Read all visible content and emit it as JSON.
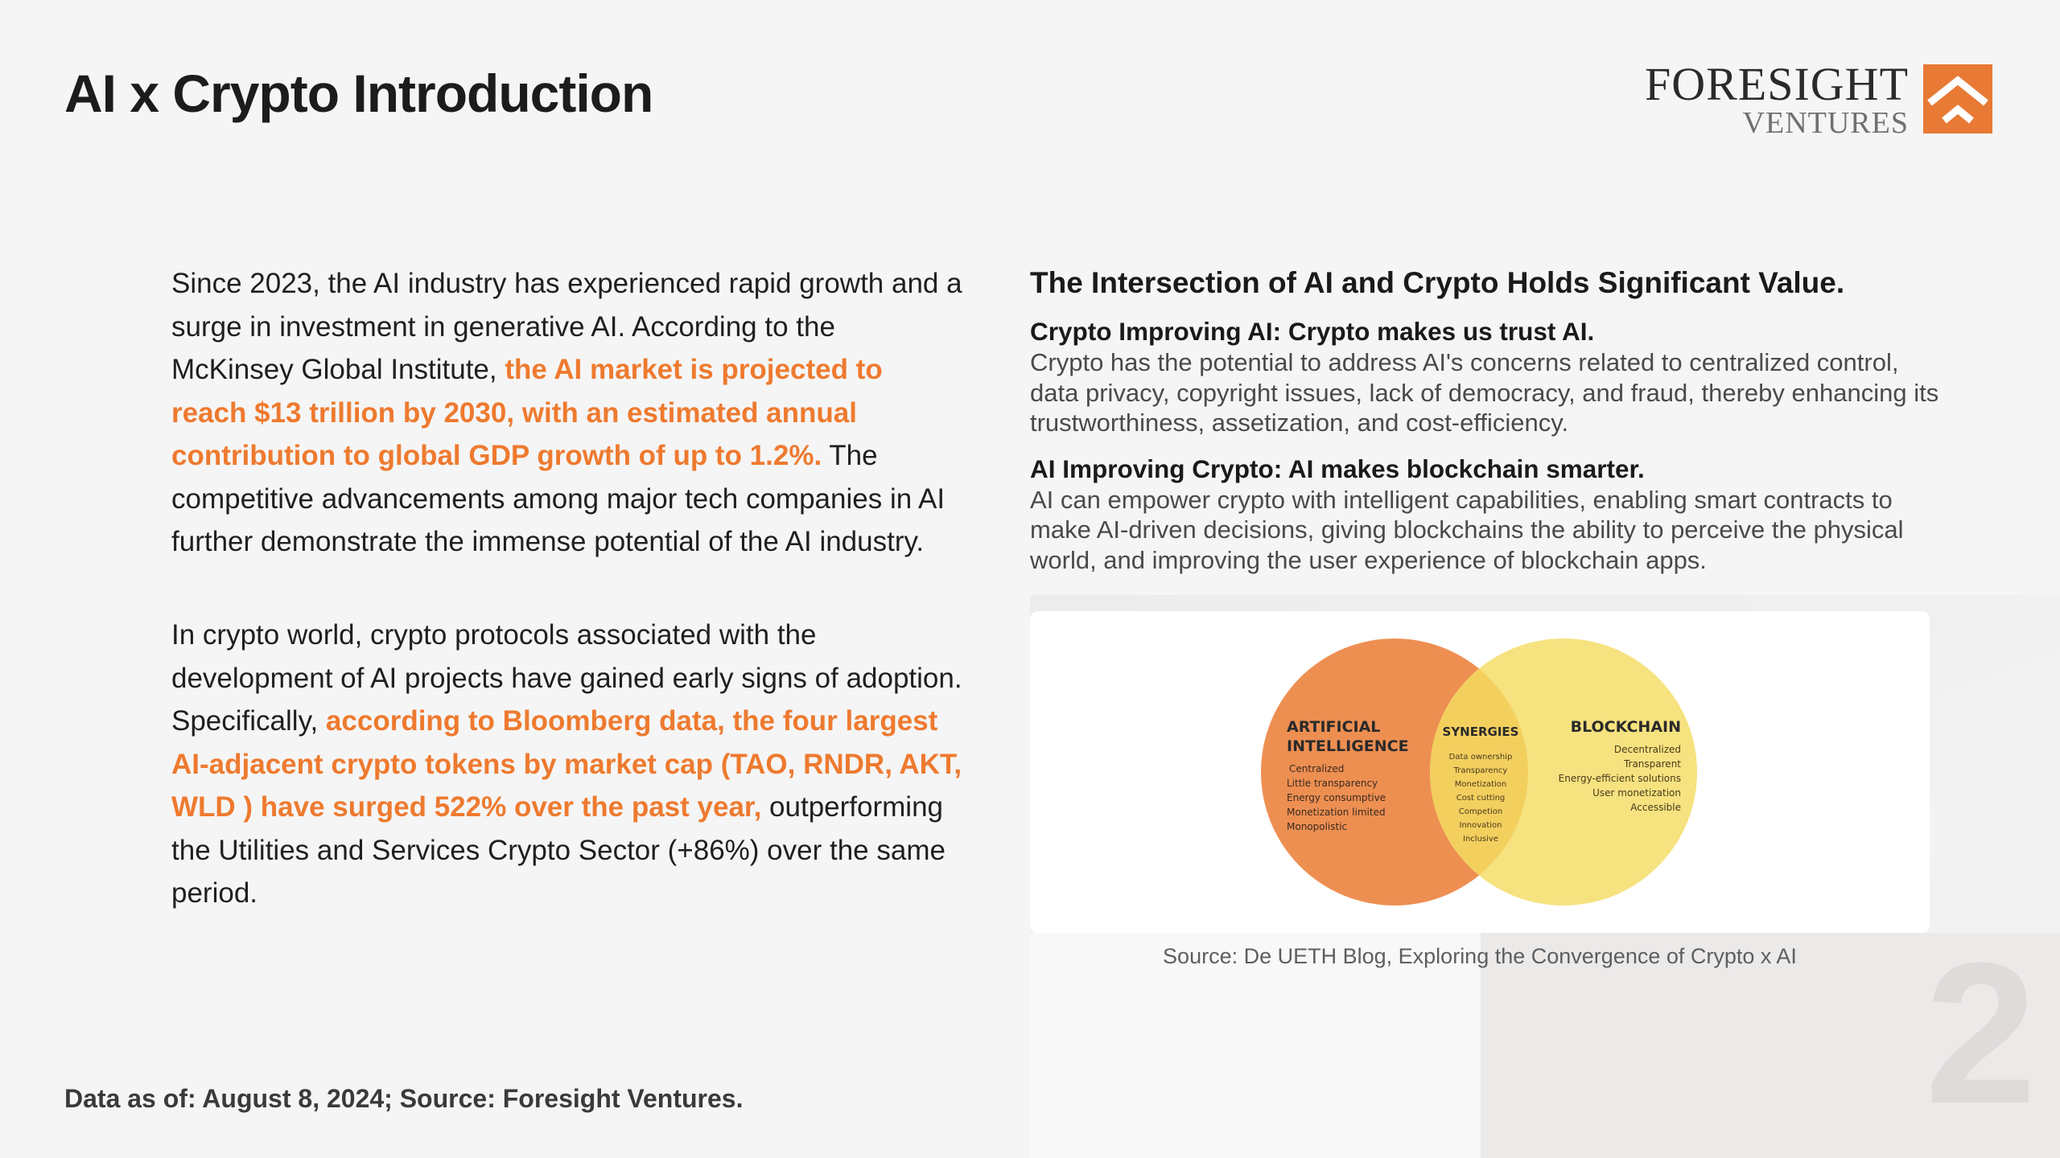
{
  "title": "AI x Crypto Introduction",
  "logo": {
    "name": "FORESIGHT",
    "subname": "VENTURES"
  },
  "left_column": {
    "paragraph_1": {
      "text_before": "Since 2023, the AI industry has experienced rapid growth and a surge in investment in generative AI. According to the McKinsey Global Institute, ",
      "highlight": "the AI market is projected to reach $13 trillion by 2030, with an estimated annual contribution to global GDP growth of up to 1.2%.",
      "text_after": " The competitive advancements among major tech companies in AI further demonstrate the immense potential of the AI industry."
    },
    "paragraph_2": {
      "text_before": "In crypto world, crypto protocols associated with the development of AI projects have gained early signs of adoption. Specifically, ",
      "highlight": "according to Bloomberg data, the four largest AI-adjacent crypto tokens by market cap (TAO, RNDR, AKT, WLD ) have surged 522% over the past year,",
      "text_after": " outperforming the Utilities and Services Crypto Sector (+86%) over the same period."
    }
  },
  "right_column": {
    "heading": "The Intersection of AI and Crypto Holds Significant Value.",
    "sections": [
      {
        "title": "Crypto Improving AI: Crypto makes us trust AI.",
        "text": "Crypto has the potential to address AI's concerns related to centralized control, data privacy, copyright issues, lack of democracy, and fraud, thereby enhancing its trustworthiness, assetization, and cost-efficiency."
      },
      {
        "title": "AI Improving Crypto: AI makes blockchain smarter.",
        "text": "AI can empower crypto with intelligent capabilities, enabling smart contracts to make AI-driven decisions, giving blockchains the ability to perceive the physical world, and improving the user experience of blockchain apps."
      }
    ]
  },
  "venn": {
    "left": {
      "title_line_1": "ARTIFICIAL",
      "title_line_2": "INTELLIGENCE",
      "items": [
        "Centralized",
        "Little transparency",
        "Energy consumptive",
        "Monetization limited",
        "Monopolistic"
      ],
      "color": "#ee8f52"
    },
    "middle": {
      "title": "SYNERGIES",
      "items": [
        "Data ownership",
        "Transparency",
        "Monetization",
        "Cost cutting",
        "Competion",
        "Innovation",
        "Inclusive"
      ],
      "color": "#f3cf5e"
    },
    "right": {
      "title": "BLOCKCHAIN",
      "items": [
        "Decentralized",
        "Transparent",
        "Energy-efficient solutions",
        "User monetization",
        "Accessible"
      ],
      "color": "#f6e27f"
    }
  },
  "source_caption": "Source: De UETH Blog, Exploring the Convergence of Crypto x AI",
  "footer_note": "Data as of: August 8, 2024;  Source: Foresight Ventures.",
  "page_number": "2",
  "colors": {
    "highlight": "#ee7a2f",
    "logo_mark": "#e87a35"
  }
}
